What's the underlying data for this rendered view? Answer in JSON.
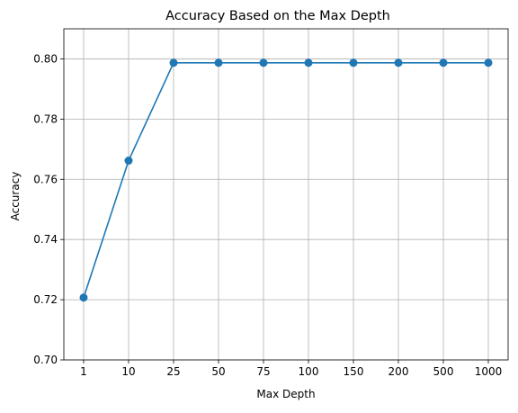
{
  "chart_data": {
    "type": "line",
    "title": "Accuracy Based on the Max Depth",
    "xlabel": "Max Depth",
    "ylabel": "Accuracy",
    "categories": [
      "1",
      "10",
      "25",
      "50",
      "75",
      "100",
      "150",
      "200",
      "500",
      "1000"
    ],
    "series": [
      {
        "values": [
          0.7207,
          0.7662,
          0.7987,
          0.7987,
          0.7987,
          0.7987,
          0.7987,
          0.7987,
          0.7987,
          0.7987
        ],
        "color": "#1f77b4",
        "marker": "circle"
      }
    ],
    "ylim": [
      0.7,
      0.81
    ],
    "yticks": [
      "0.70",
      "0.72",
      "0.74",
      "0.76",
      "0.78",
      "0.80"
    ],
    "grid": true,
    "grid_color": "#b0b0b0",
    "legend": "none"
  }
}
